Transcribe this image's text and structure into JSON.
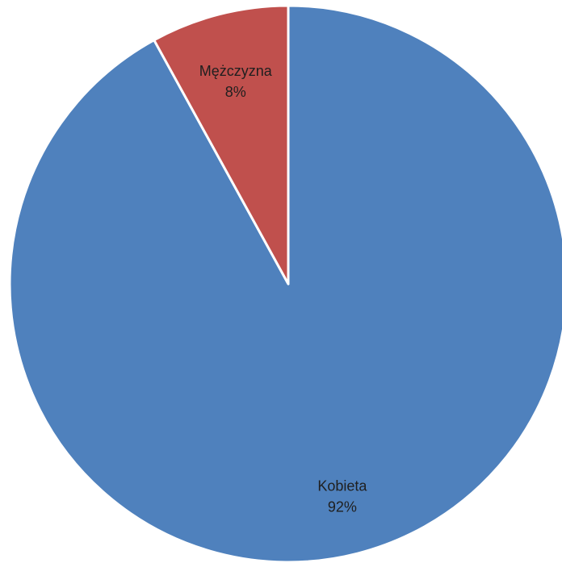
{
  "chart_data": {
    "type": "pie",
    "title": "",
    "categories": [
      "Kobieta",
      "Mężczyzna"
    ],
    "values": [
      92,
      8
    ],
    "value_labels": [
      "92%",
      "8%"
    ],
    "colors": [
      "#4F81BD",
      "#C0504D"
    ],
    "legend": "none",
    "start_angle_deg": 0,
    "direction": "counterclockwise-from-top"
  }
}
